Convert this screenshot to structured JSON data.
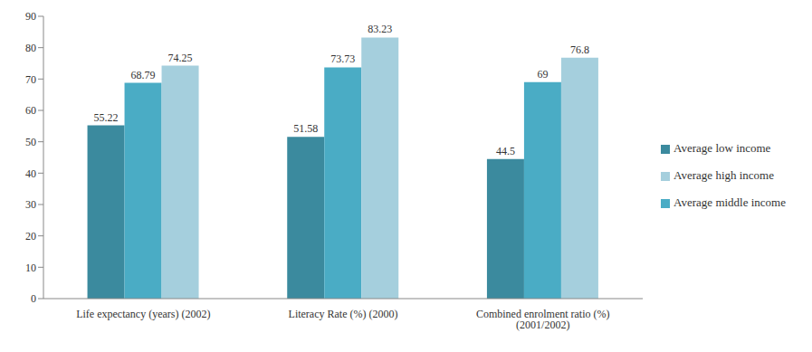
{
  "chart_data": {
    "type": "bar",
    "categories": [
      "Life expectancy (years) (2002)",
      "Literacy Rate (%) (2000)",
      "Combined enrolment ratio (%) (2001/2002)"
    ],
    "series": [
      {
        "name": "Average  low income",
        "color": "#3b8a9e",
        "values": [
          55.22,
          51.58,
          44.5
        ]
      },
      {
        "name": "Average middle income",
        "color": "#4aacc5",
        "values": [
          68.79,
          73.73,
          69
        ]
      },
      {
        "name": "Average high income",
        "color": "#a5cfdd",
        "values": [
          74.25,
          83.23,
          76.8
        ]
      }
    ],
    "ylim": [
      0,
      90
    ],
    "yticks": [
      0,
      10,
      20,
      30,
      40,
      50,
      60,
      70,
      80,
      90
    ],
    "grid": false,
    "legend": "right",
    "data_labels": true
  }
}
